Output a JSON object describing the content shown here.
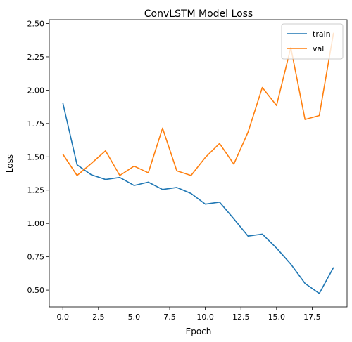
{
  "chart_data": {
    "type": "line",
    "title": "ConvLSTM Model Loss",
    "xlabel": "Epoch",
    "ylabel": "Loss",
    "xlim": [
      -0.95,
      19.95
    ],
    "ylim": [
      0.374,
      2.529
    ],
    "x_ticks": [
      0.0,
      2.5,
      5.0,
      7.5,
      10.0,
      12.5,
      15.0,
      17.5
    ],
    "x_tick_labels": [
      "0.0",
      "2.5",
      "5.0",
      "7.5",
      "10.0",
      "12.5",
      "15.0",
      "17.5"
    ],
    "y_ticks": [
      0.5,
      0.75,
      1.0,
      1.25,
      1.5,
      1.75,
      2.0,
      2.25,
      2.5
    ],
    "y_tick_labels": [
      "0.50",
      "0.75",
      "1.00",
      "1.25",
      "1.50",
      "1.75",
      "2.00",
      "2.25",
      "2.50"
    ],
    "grid": false,
    "legend_position": "top-right",
    "x": [
      0,
      1,
      2,
      3,
      4,
      5,
      6,
      7,
      8,
      9,
      10,
      11,
      12,
      13,
      14,
      15,
      16,
      17,
      18,
      19
    ],
    "series": [
      {
        "name": "train",
        "color": "#1f77b4",
        "values": [
          1.905,
          1.44,
          1.365,
          1.33,
          1.345,
          1.285,
          1.31,
          1.255,
          1.27,
          1.225,
          1.145,
          1.16,
          1.035,
          0.905,
          0.92,
          0.815,
          0.695,
          0.55,
          0.475,
          0.67
        ]
      },
      {
        "name": "val",
        "color": "#ff7f0e",
        "values": [
          1.52,
          1.36,
          1.45,
          1.545,
          1.36,
          1.43,
          1.38,
          1.715,
          1.395,
          1.36,
          1.495,
          1.6,
          1.445,
          1.685,
          2.02,
          1.885,
          2.32,
          1.78,
          1.81,
          2.43
        ]
      }
    ]
  }
}
